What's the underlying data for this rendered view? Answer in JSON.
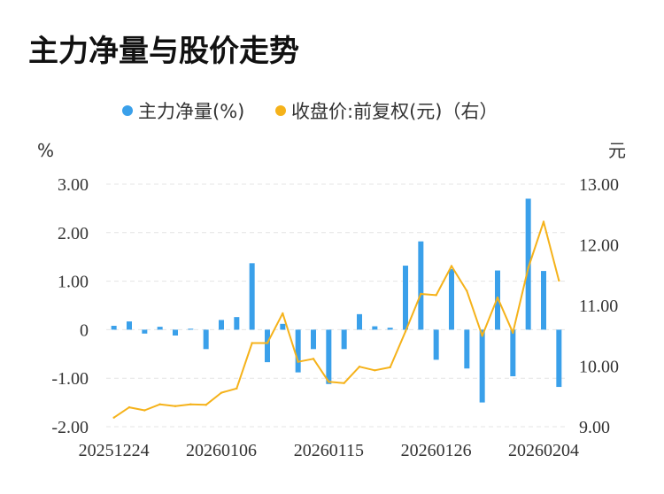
{
  "chart_data": {
    "type": "bar+line",
    "title": "主力净量与股价走势",
    "legend": {
      "placement": "top-center",
      "items": [
        {
          "name": "主力净量(%)",
          "color": "#3aa0ea",
          "marker": "circle"
        },
        {
          "name": "收盘价:前复权(元)（右）",
          "color": "#f5b21a",
          "marker": "circle"
        }
      ]
    },
    "y_left": {
      "unit": "%",
      "ylim": [
        -2,
        3
      ],
      "ticks": [
        "3.00",
        "2.00",
        "1.00",
        "0",
        "-1.00",
        "-2.00"
      ],
      "tick_values": [
        3,
        2,
        1,
        0,
        -1,
        -2
      ]
    },
    "y_right": {
      "unit": "元",
      "ylim": [
        9,
        13
      ],
      "ticks": [
        "13.00",
        "12.00",
        "11.00",
        "10.00",
        "9.00"
      ],
      "tick_values": [
        13,
        12,
        11,
        10,
        9
      ]
    },
    "x_tick_labels": [
      {
        "index": 0,
        "label": "20251224"
      },
      {
        "index": 7,
        "label": "20260106"
      },
      {
        "index": 14,
        "label": "20260115"
      },
      {
        "index": 21,
        "label": "20260126"
      },
      {
        "index": 28,
        "label": "20260204"
      }
    ],
    "grid": true,
    "series": [
      {
        "name": "主力净量(%)",
        "kind": "bar",
        "axis": "left",
        "color": "#3aa0ea",
        "values": [
          0.08,
          0.17,
          -0.08,
          0.06,
          -0.12,
          0.02,
          -0.4,
          0.2,
          0.26,
          1.37,
          -0.67,
          0.12,
          -0.88,
          -0.4,
          -1.12,
          -0.4,
          0.32,
          0.07,
          0.04,
          1.32,
          1.82,
          -0.62,
          1.25,
          -0.8,
          -1.5,
          1.22,
          -0.96,
          2.7,
          1.21,
          -1.18
        ]
      },
      {
        "name": "收盘价:前复权(元)（右）",
        "kind": "line",
        "axis": "right",
        "color": "#f5b21a",
        "values": [
          9.15,
          9.32,
          9.27,
          9.37,
          9.34,
          9.37,
          9.36,
          9.56,
          9.63,
          10.38,
          10.38,
          10.87,
          10.07,
          10.12,
          9.74,
          9.72,
          9.99,
          9.93,
          9.98,
          10.57,
          11.19,
          11.17,
          11.65,
          11.24,
          10.5,
          11.13,
          10.55,
          11.62,
          12.38,
          11.41
        ]
      }
    ]
  }
}
